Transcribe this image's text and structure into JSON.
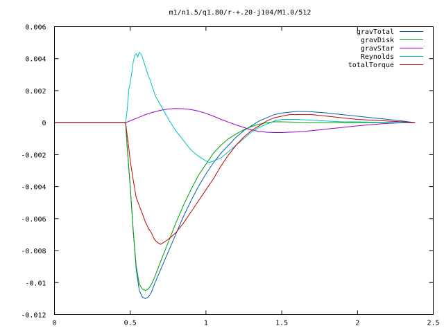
{
  "chart_data": {
    "type": "line",
    "title": "m1/n1.5/q1.80/r-+.20-j104/M1.0/512",
    "xlabel": "",
    "ylabel": "",
    "xlim": [
      0,
      2.5
    ],
    "ylim": [
      -0.012,
      0.006
    ],
    "x_ticks": [
      "0",
      "0.5",
      "1",
      "1.5",
      "2",
      "2.5"
    ],
    "y_ticks": [
      "0.006",
      "0.004",
      "0.002",
      "0",
      "-0.002",
      "-0.004",
      "-0.006",
      "-0.008",
      "-0.01",
      "-0.012"
    ],
    "grid": false,
    "legend_position": "top-right",
    "series": [
      {
        "name": "gravTotal",
        "color": "#0060ad",
        "x": [
          0,
          0.47,
          0.48,
          0.5,
          0.52,
          0.54,
          0.56,
          0.58,
          0.6,
          0.62,
          0.64,
          0.66,
          0.7,
          0.75,
          0.8,
          0.85,
          0.9,
          0.95,
          1.0,
          1.05,
          1.1,
          1.15,
          1.2,
          1.25,
          1.3,
          1.35,
          1.4,
          1.45,
          1.5,
          1.55,
          1.6,
          1.65,
          1.7,
          1.8,
          1.9,
          2.0,
          2.1,
          2.2,
          2.3,
          2.38
        ],
        "y": [
          0,
          0,
          -0.0015,
          -0.004,
          -0.0068,
          -0.0092,
          -0.0105,
          -0.0109,
          -0.011,
          -0.0109,
          -0.0106,
          -0.0101,
          -0.0092,
          -0.0081,
          -0.007,
          -0.0059,
          -0.0049,
          -0.004,
          -0.0032,
          -0.0025,
          -0.0019,
          -0.0014,
          -0.0009,
          -0.0005,
          -0.0002,
          0.0001,
          0.0003,
          0.0005,
          0.0006,
          0.00065,
          0.0007,
          0.0007,
          0.00068,
          0.0006,
          0.0005,
          0.0004,
          0.0003,
          0.0002,
          0.0001,
          0
        ]
      },
      {
        "name": "gravDisk",
        "color": "#009e00",
        "x": [
          0,
          0.47,
          0.48,
          0.5,
          0.52,
          0.54,
          0.56,
          0.58,
          0.6,
          0.62,
          0.64,
          0.66,
          0.7,
          0.75,
          0.8,
          0.85,
          0.9,
          0.95,
          1.0,
          1.05,
          1.1,
          1.15,
          1.2,
          1.25,
          1.3,
          1.35,
          1.4,
          1.45,
          1.5,
          1.6,
          1.7,
          1.8,
          2.0,
          2.2,
          2.38
        ],
        "y": [
          0,
          0,
          -0.0015,
          -0.004,
          -0.0068,
          -0.009,
          -0.0101,
          -0.0104,
          -0.0105,
          -0.0104,
          -0.0101,
          -0.0097,
          -0.0087,
          -0.0075,
          -0.0063,
          -0.0052,
          -0.0042,
          -0.0033,
          -0.0026,
          -0.0019,
          -0.0014,
          -0.001,
          -0.0007,
          -0.00045,
          -0.00025,
          -0.0001,
          0,
          5e-05,
          5e-05,
          3e-05,
          0,
          0,
          0,
          0,
          0
        ]
      },
      {
        "name": "gravStar",
        "color": "#9400d3",
        "x": [
          0,
          0.47,
          0.55,
          0.6,
          0.65,
          0.7,
          0.75,
          0.8,
          0.85,
          0.9,
          0.95,
          1.0,
          1.05,
          1.1,
          1.15,
          1.2,
          1.25,
          1.3,
          1.35,
          1.4,
          1.45,
          1.5,
          1.55,
          1.6,
          1.65,
          1.7,
          1.75,
          1.8,
          1.9,
          2.0,
          2.1,
          2.2,
          2.3,
          2.38
        ],
        "y": [
          0,
          0,
          0.0003,
          0.0005,
          0.00065,
          0.00077,
          0.00085,
          0.00088,
          0.00087,
          0.00082,
          0.00072,
          0.00058,
          0.0004,
          0.0002,
          2e-05,
          -0.00015,
          -0.0003,
          -0.00045,
          -0.00055,
          -0.0006,
          -0.00062,
          -0.00062,
          -0.0006,
          -0.00058,
          -0.00055,
          -0.0005,
          -0.00045,
          -0.0004,
          -0.0003,
          -0.0002,
          -0.00012,
          -5e-05,
          -1e-05,
          0
        ]
      },
      {
        "name": "Reynolds",
        "color": "#00c0c0",
        "x": [
          0,
          0.47,
          0.48,
          0.49,
          0.5,
          0.51,
          0.52,
          0.53,
          0.54,
          0.55,
          0.56,
          0.57,
          0.58,
          0.59,
          0.6,
          0.61,
          0.62,
          0.63,
          0.64,
          0.65,
          0.67,
          0.7,
          0.73,
          0.76,
          0.8,
          0.85,
          0.9,
          0.95,
          1.0,
          1.02,
          1.05,
          1.1,
          1.15,
          1.2,
          1.25,
          1.3,
          1.35,
          1.4,
          1.45,
          1.5,
          1.55,
          1.6,
          1.7,
          1.8,
          1.9,
          2.0,
          2.1,
          2.2,
          2.3,
          2.38
        ],
        "y": [
          0,
          0,
          0.0008,
          0.002,
          0.0025,
          0.0031,
          0.0038,
          0.0042,
          0.0043,
          0.0041,
          0.0044,
          0.0043,
          0.0041,
          0.0038,
          0.0035,
          0.0032,
          0.0029,
          0.0027,
          0.0024,
          0.0021,
          0.0016,
          0.0011,
          0.0006,
          0.0001,
          -0.0005,
          -0.0011,
          -0.0017,
          -0.0021,
          -0.0024,
          -0.0025,
          -0.0024,
          -0.0022,
          -0.0018,
          -0.0014,
          -0.001,
          -0.0006,
          -0.0003,
          -0.0001,
          0.0001,
          0.0002,
          0.0002,
          0.0002,
          0.00015,
          0.0001,
          5e-05,
          5e-05,
          3e-05,
          1e-05,
          0,
          0
        ]
      },
      {
        "name": "totalTorque",
        "color": "#c00000",
        "x": [
          0,
          0.47,
          0.48,
          0.49,
          0.5,
          0.52,
          0.54,
          0.56,
          0.58,
          0.6,
          0.62,
          0.64,
          0.66,
          0.68,
          0.7,
          0.72,
          0.75,
          0.8,
          0.85,
          0.9,
          0.95,
          1.0,
          1.05,
          1.1,
          1.15,
          1.2,
          1.25,
          1.3,
          1.35,
          1.4,
          1.45,
          1.5,
          1.55,
          1.6,
          1.65,
          1.7,
          1.75,
          1.8,
          1.9,
          2.0,
          2.1,
          2.2,
          2.3,
          2.38
        ],
        "y": [
          0,
          0,
          -0.0008,
          -0.0015,
          -0.0024,
          -0.0036,
          -0.0047,
          -0.0052,
          -0.0057,
          -0.0062,
          -0.0066,
          -0.0069,
          -0.0073,
          -0.0075,
          -0.0076,
          -0.0075,
          -0.0073,
          -0.0069,
          -0.0063,
          -0.0056,
          -0.0049,
          -0.0042,
          -0.0035,
          -0.0027,
          -0.002,
          -0.0014,
          -0.0009,
          -0.0005,
          -0.0002,
          0.0001,
          0.0003,
          0.0004,
          0.0005,
          0.0005,
          0.0005,
          0.0005,
          0.00045,
          0.0004,
          0.0003,
          0.0002,
          0.00015,
          0.0001,
          5e-05,
          0
        ]
      }
    ]
  }
}
